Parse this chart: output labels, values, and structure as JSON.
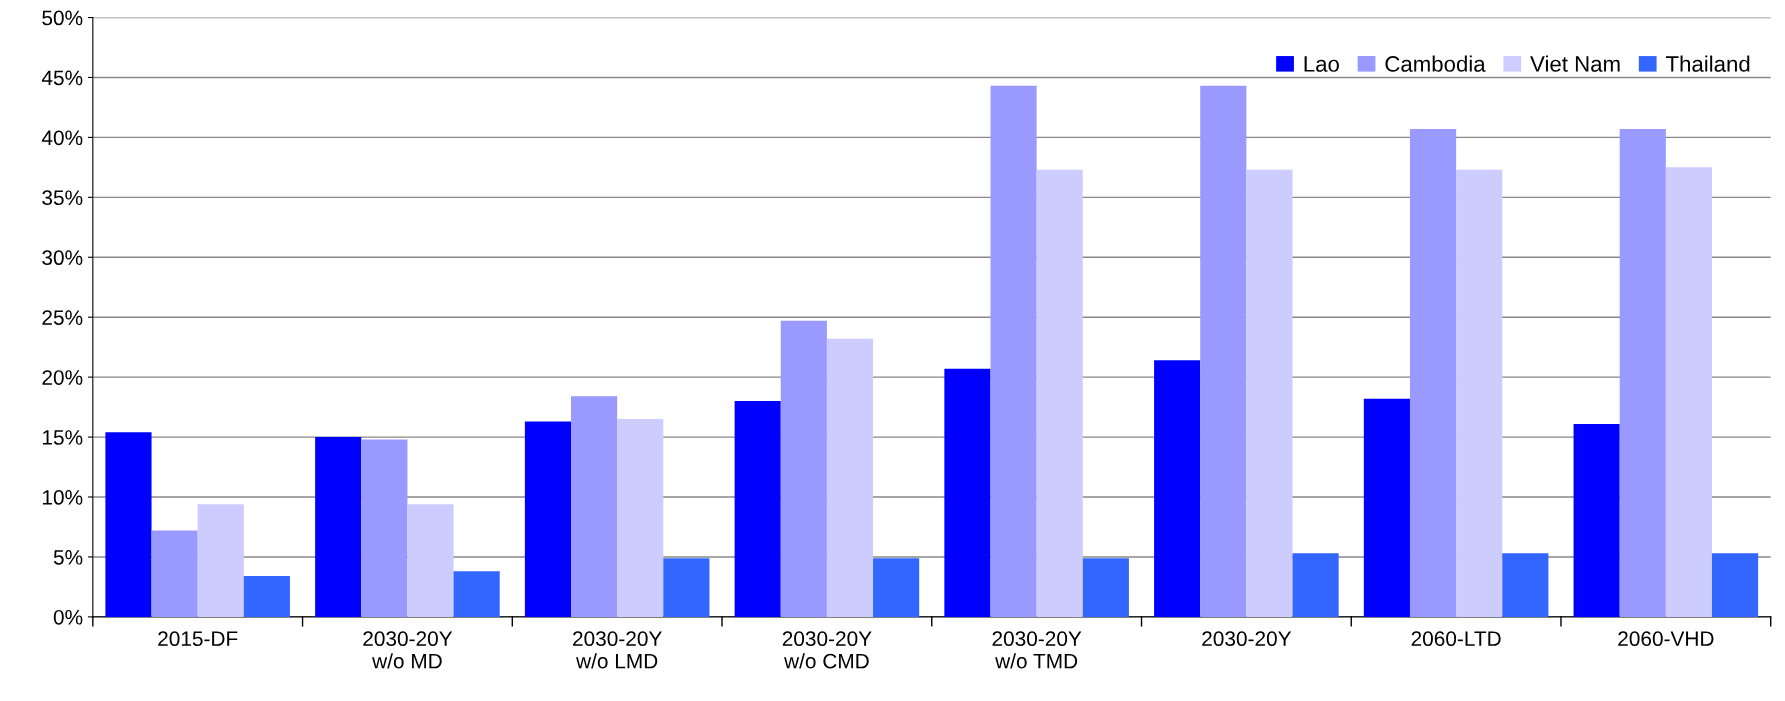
{
  "chart_data": {
    "type": "bar",
    "categories": [
      "2015-DF",
      "2030-20Y\nw/o MD",
      "2030-20Y\nw/o LMD",
      "2030-20Y\nw/o CMD",
      "2030-20Y\nw/o TMD",
      "2030-20Y",
      "2060-LTD",
      "2060-VHD"
    ],
    "series": [
      {
        "name": "Lao",
        "color": "#0000ff",
        "values": [
          15.4,
          15.0,
          16.3,
          18.0,
          20.7,
          21.4,
          18.2,
          16.1
        ]
      },
      {
        "name": "Cambodia",
        "color": "#9999ff",
        "values": [
          7.2,
          14.8,
          18.4,
          24.7,
          44.3,
          44.3,
          40.7,
          40.7
        ]
      },
      {
        "name": "Viet Nam",
        "color": "#ccccff",
        "values": [
          9.4,
          9.4,
          16.5,
          23.2,
          37.3,
          37.3,
          37.3,
          37.5
        ]
      },
      {
        "name": "Thailand",
        "color": "#3366ff",
        "values": [
          3.4,
          3.8,
          4.9,
          4.9,
          4.9,
          5.3,
          5.3,
          5.3
        ]
      }
    ],
    "ylim": [
      0,
      50
    ],
    "yticks": [
      {
        "value": 0,
        "label": "0%"
      },
      {
        "value": 5,
        "label": "5%"
      },
      {
        "value": 10,
        "label": "10%"
      },
      {
        "value": 15,
        "label": "15%"
      },
      {
        "value": 20,
        "label": "20%"
      },
      {
        "value": 25,
        "label": "25%"
      },
      {
        "value": 30,
        "label": "30%"
      },
      {
        "value": 35,
        "label": "35%"
      },
      {
        "value": 40,
        "label": "40%"
      },
      {
        "value": 45,
        "label": "45%"
      },
      {
        "value": 50,
        "label": "50%"
      }
    ],
    "grid": "y",
    "legend": "top right"
  }
}
